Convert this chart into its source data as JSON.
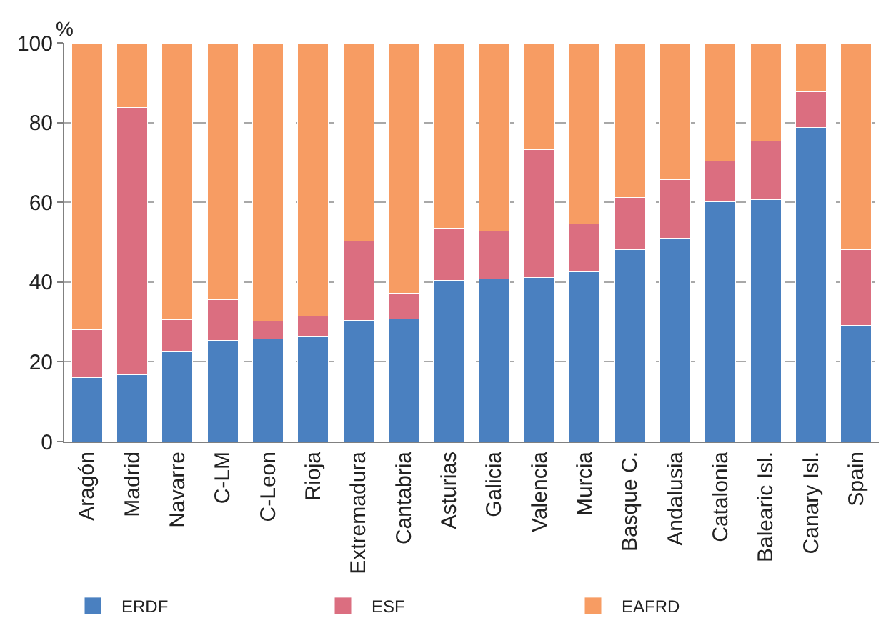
{
  "chart_data": {
    "type": "bar",
    "stacked": true,
    "ylabel": "%",
    "categories": [
      "Aragón",
      "Madrid",
      "Navarre",
      "C-LM",
      "C-Leon",
      "Rioja",
      "Extremadura",
      "Cantabria",
      "Asturias",
      "Galicia",
      "Valencia",
      "Murcia",
      "Basque C.",
      "Andalusia",
      "Catalonia",
      "Balearic Isl.",
      "Canary Isl.",
      "Spain"
    ],
    "series": [
      {
        "name": "ERDF",
        "color": "#4a80c0",
        "values": [
          16,
          16.7,
          22.6,
          25.4,
          25.7,
          26.5,
          30.3,
          30.7,
          40.4,
          40.8,
          41.1,
          42.6,
          48.1,
          51,
          60.1,
          60.6,
          78.8,
          29.2
        ]
      },
      {
        "name": "ESF",
        "color": "#db6e80",
        "values": [
          12,
          67,
          8,
          10.2,
          4.5,
          5,
          19.9,
          6.4,
          13.1,
          12,
          32.1,
          12,
          13.1,
          14.6,
          10.3,
          14.7,
          8.9,
          19
        ]
      },
      {
        "name": "EAFRD",
        "color": "#f79c63",
        "values": [
          72,
          16.3,
          69.4,
          64.4,
          69.8,
          68.5,
          49.8,
          62.9,
          46.5,
          47.2,
          26.8,
          45.4,
          38.8,
          34.4,
          29.6,
          24.7,
          12.3,
          51.8
        ]
      }
    ],
    "ylim": [
      0,
      100
    ],
    "yticks": [
      0,
      20,
      40,
      60,
      80,
      100
    ],
    "grid": "y",
    "legend": "bottom"
  }
}
